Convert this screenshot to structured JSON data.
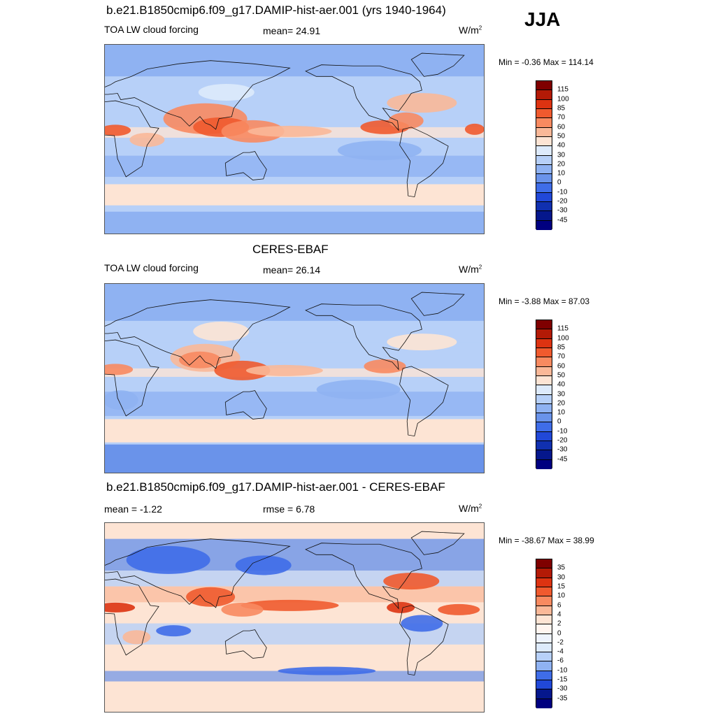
{
  "season": "JJA",
  "panels": [
    {
      "title": "b.e21.B1850cmip6.f09_g17.DAMIP-hist-aer.001 (yrs 1940-1964)",
      "left_label": "TOA LW cloud forcing",
      "mid_label": "mean=  24.91",
      "units": "W/m",
      "units_sup": "2",
      "minmax": "Min =  -0.36 Max = 114.14",
      "colorbar": {
        "levels": [
          "115",
          "100",
          "85",
          "70",
          "60",
          "50",
          "40",
          "30",
          "20",
          "10",
          "0",
          "-10",
          "-20",
          "-30",
          "-45"
        ],
        "colors": [
          "#7f0000",
          "#b31a06",
          "#dd3311",
          "#f05a2e",
          "#f88a60",
          "#fab898",
          "#fde4d4",
          "#ddeafb",
          "#b7d0f8",
          "#8fb2f2",
          "#6a93ea",
          "#3f6de8",
          "#2148d8",
          "#1030b0",
          "#05178c",
          "#000080"
        ]
      }
    },
    {
      "title": "CERES-EBAF",
      "left_label": "TOA LW cloud forcing",
      "mid_label": "mean=  26.14",
      "units": "W/m",
      "units_sup": "2",
      "minmax": "Min =  -3.88 Max =  87.03",
      "colorbar": {
        "levels": [
          "115",
          "100",
          "85",
          "70",
          "60",
          "50",
          "40",
          "30",
          "20",
          "10",
          "0",
          "-10",
          "-20",
          "-30",
          "-45"
        ],
        "colors": [
          "#7f0000",
          "#b31a06",
          "#dd3311",
          "#f05a2e",
          "#f88a60",
          "#fab898",
          "#fde4d4",
          "#ddeafb",
          "#b7d0f8",
          "#8fb2f2",
          "#6a93ea",
          "#3f6de8",
          "#2148d8",
          "#1030b0",
          "#05178c",
          "#000080"
        ]
      }
    },
    {
      "title": "b.e21.B1850cmip6.f09_g17.DAMIP-hist-aer.001 - CERES-EBAF",
      "left_label": "mean =  -1.22",
      "mid_label": "rmse =   6.78",
      "units": "W/m",
      "units_sup": "2",
      "minmax": "Min = -38.67 Max =  38.99",
      "colorbar": {
        "levels": [
          "35",
          "30",
          "15",
          "10",
          "6",
          "4",
          "2",
          "0",
          "-2",
          "-4",
          "-6",
          "-10",
          "-15",
          "-30",
          "-35"
        ],
        "colors": [
          "#7f0000",
          "#b31a06",
          "#dd3311",
          "#f05a2e",
          "#f88a60",
          "#fab898",
          "#fde4d4",
          "#fff5f0",
          "#eef3fd",
          "#ddeafb",
          "#b7d0f8",
          "#8fb2f2",
          "#3f6de8",
          "#2148d8",
          "#05178c",
          "#000080"
        ]
      }
    }
  ]
}
